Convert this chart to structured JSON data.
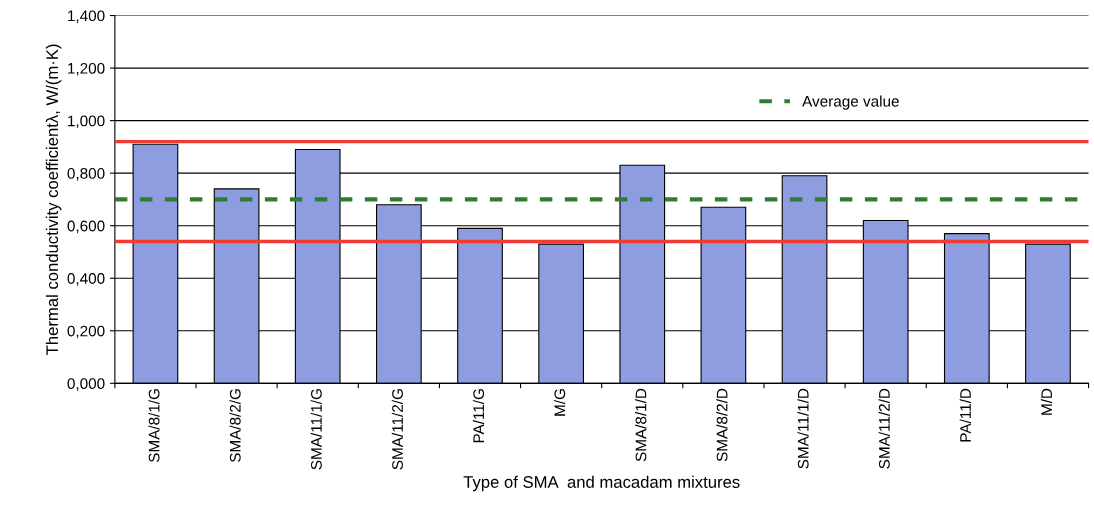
{
  "chart_data": {
    "type": "bar",
    "xlabel": "Type of SMA  and macadam mixtures",
    "ylabel": "Thermal conductivity coefficientλ, W/(m·K)",
    "categories": [
      "SMA/8/1/G",
      "SMA/8/2/G",
      "SMA/11/1/G",
      "SMA/11/2/G",
      "PA/11/G",
      "M/G",
      "SMA/8/1/D",
      "SMA/8/2/D",
      "SMA/11/1/D",
      "SMA/11/2/D",
      "PA/11/D",
      "M/D"
    ],
    "values": [
      0.91,
      0.74,
      0.89,
      0.68,
      0.59,
      0.53,
      0.83,
      0.67,
      0.79,
      0.62,
      0.57,
      0.53
    ],
    "color": "#8d9de0",
    "ylim": [
      0,
      1.4
    ],
    "yticks": [
      {
        "value": 0,
        "label": "0,000"
      },
      {
        "value": 0.2,
        "label": "0,200"
      },
      {
        "value": 0.4,
        "label": "0,400"
      },
      {
        "value": 0.6,
        "label": "0,600"
      },
      {
        "value": 0.8,
        "label": "0,800"
      },
      {
        "value": 1.0,
        "label": "1,000"
      },
      {
        "value": 1.2,
        "label": "1,200"
      },
      {
        "value": 1.4,
        "label": "1,400"
      }
    ],
    "grid": "y",
    "ref_lines": [
      {
        "axis": "y",
        "value": 0.92,
        "color": "#f03c32",
        "line_style": "solid"
      },
      {
        "axis": "y",
        "value": 0.7,
        "label": "Average value",
        "color": "#2e7d32",
        "line_style": "dashed"
      },
      {
        "axis": "y",
        "value": 0.54,
        "color": "#f03c32",
        "line_style": "solid"
      }
    ],
    "legend": "top right"
  }
}
